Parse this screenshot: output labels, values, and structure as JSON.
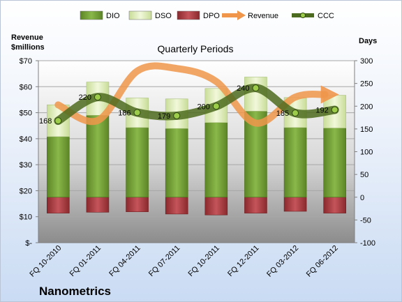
{
  "chart_data": {
    "type": "bar",
    "title": "Quarterly Periods",
    "company": "Nanometrics",
    "left_axis_label_line1": "Revenue",
    "left_axis_label_line2": "$millions",
    "right_axis_label": "Days",
    "categories": [
      "FQ 10-2010",
      "FQ 01-2011",
      "FQ 04-2011",
      "FQ 07-2011",
      "FQ 10-2011",
      "FQ 12-2011",
      "FQ 03-2012",
      "FQ 06-2012"
    ],
    "left_ylim": [
      0,
      70
    ],
    "left_ticks": [
      0,
      10,
      20,
      30,
      40,
      50,
      60,
      70
    ],
    "left_tick_labels": [
      "$-",
      "$10",
      "$20",
      "$30",
      "$40",
      "$50",
      "$60",
      "$70"
    ],
    "right_ylim": [
      -100,
      300
    ],
    "right_ticks": [
      -100,
      -50,
      0,
      50,
      100,
      150,
      200,
      250,
      300
    ],
    "series": [
      {
        "name": "DIO",
        "axis": "right",
        "color": "#77a136",
        "values": [
          133,
          180,
          153,
          151,
          164,
          189,
          153,
          152
        ]
      },
      {
        "name": "DSO",
        "axis": "right",
        "color": "#e6f2c4",
        "values": [
          70,
          73,
          65,
          65,
          75,
          75,
          66,
          72
        ]
      },
      {
        "name": "DPO",
        "axis": "right",
        "color": "#a8353a",
        "values": [
          -35,
          -33,
          -32,
          -37,
          -39,
          -35,
          -31,
          -35
        ]
      },
      {
        "name": "Revenue",
        "axis": "left",
        "color": "#f0964b",
        "values": [
          53,
          47,
          66,
          67,
          62,
          46,
          56,
          57
        ]
      },
      {
        "name": "CCC",
        "axis": "right",
        "color": "#4d6b1f",
        "values": [
          168,
          220,
          186,
          179,
          200,
          240,
          185,
          192
        ],
        "labels": [
          "168",
          "220",
          "186",
          "179",
          "200",
          "240",
          "185",
          "192"
        ]
      }
    ],
    "legend": {
      "position": "top",
      "items": [
        "DIO",
        "DSO",
        "DPO",
        "Revenue",
        "CCC"
      ]
    },
    "grid": true
  }
}
